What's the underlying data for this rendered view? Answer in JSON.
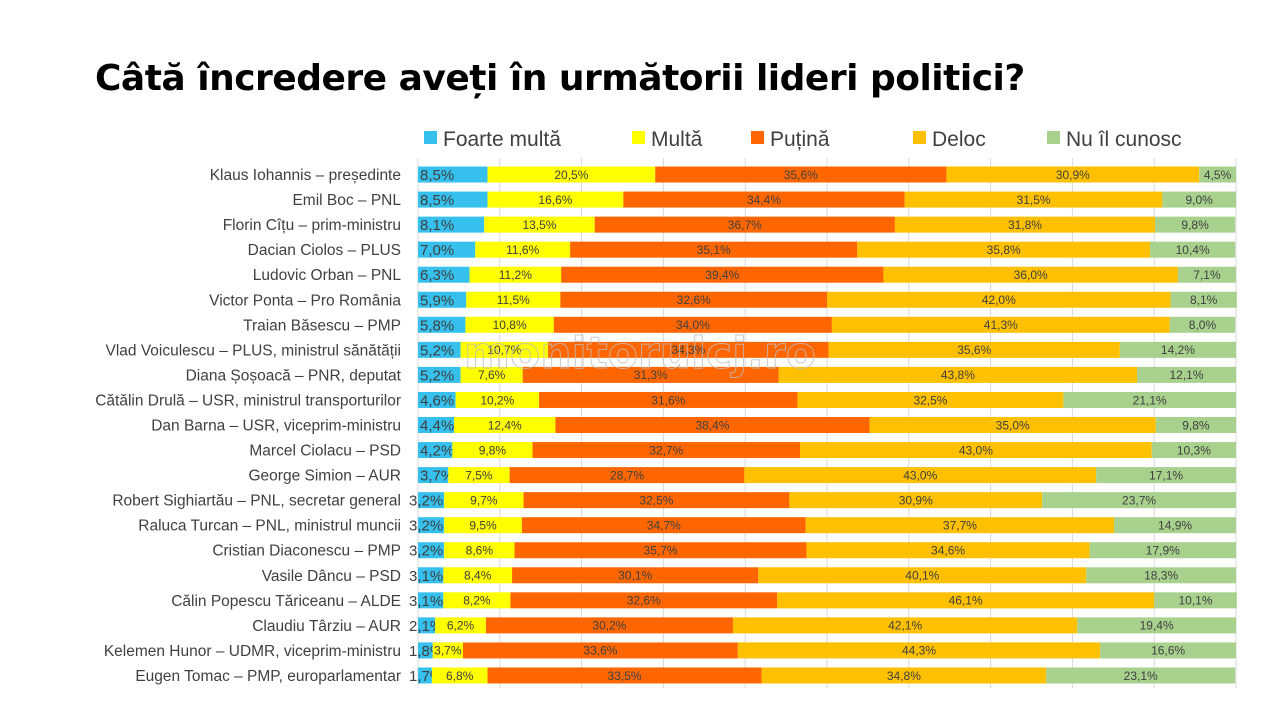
{
  "title": "Câtă încredere aveți în următorii lideri politici?",
  "watermark": "monitorulcj.ro",
  "chart_data": {
    "type": "bar",
    "orientation": "horizontal",
    "stacked": true,
    "percent": true,
    "xlim": [
      0,
      100
    ],
    "grid": true,
    "legend_position": "top",
    "categories": [
      "Klaus Iohannis – președinte",
      "Emil Boc – PNL",
      "Florin Cîțu – prim-ministru",
      "Dacian Ciolos – PLUS",
      "Ludovic Orban – PNL",
      "Victor Ponta – Pro România",
      "Traian Băsescu – PMP",
      "Vlad Voiculescu – PLUS, ministrul sănătății",
      "Diana Șoșoacă – PNR, deputat",
      "Cătălin Drulă – USR, ministrul transporturilor",
      "Dan Barna – USR, viceprim-ministru",
      "Marcel Ciolacu – PSD",
      "George Simion – AUR",
      "Robert Sighiartău – PNL, secretar general",
      "Raluca Turcan – PNL, ministrul muncii",
      "Cristian Diaconescu – PMP",
      "Vasile Dâncu – PSD",
      "Călin Popescu Tăriceanu – ALDE",
      "Claudiu Târziu – AUR",
      "Kelemen Hunor – UDMR, viceprim-ministru",
      "Eugen Tomac – PMP, europarlamentar"
    ],
    "series": [
      {
        "name": "Foarte multă",
        "color": "#35C0EE",
        "values": [
          8.5,
          8.5,
          8.1,
          7.0,
          6.3,
          5.9,
          5.8,
          5.2,
          5.2,
          4.6,
          4.4,
          4.2,
          3.7,
          3.2,
          3.2,
          3.2,
          3.1,
          3.1,
          2.1,
          1.8,
          1.7
        ]
      },
      {
        "name": "Multă",
        "color": "#FFFF00",
        "values": [
          20.5,
          16.6,
          13.5,
          11.6,
          11.2,
          11.5,
          10.8,
          10.7,
          7.6,
          10.2,
          12.4,
          9.8,
          7.5,
          9.7,
          9.5,
          8.6,
          8.4,
          8.2,
          6.2,
          3.7,
          6.8
        ]
      },
      {
        "name": "Puțină",
        "color": "#FF6600",
        "values": [
          35.6,
          34.4,
          36.7,
          35.1,
          39.4,
          32.6,
          34.0,
          34.3,
          31.3,
          31.6,
          38.4,
          32.7,
          28.7,
          32.5,
          34.7,
          35.7,
          30.1,
          32.6,
          30.2,
          33.6,
          33.5
        ]
      },
      {
        "name": "Deloc",
        "color": "#FFC000",
        "values": [
          30.9,
          31.5,
          31.8,
          35.8,
          36.0,
          42.0,
          41.3,
          35.6,
          43.8,
          32.5,
          35.0,
          43.0,
          43.0,
          30.9,
          37.7,
          34.6,
          40.1,
          46.1,
          42.1,
          44.3,
          34.8
        ]
      },
      {
        "name": "Nu îl cunosc",
        "color": "#A9D18E",
        "values": [
          4.5,
          9.0,
          9.8,
          10.4,
          7.1,
          8.1,
          8.0,
          14.2,
          12.1,
          21.1,
          9.8,
          10.3,
          17.1,
          23.7,
          14.9,
          17.9,
          18.3,
          10.1,
          19.4,
          16.6,
          23.1
        ]
      }
    ]
  }
}
